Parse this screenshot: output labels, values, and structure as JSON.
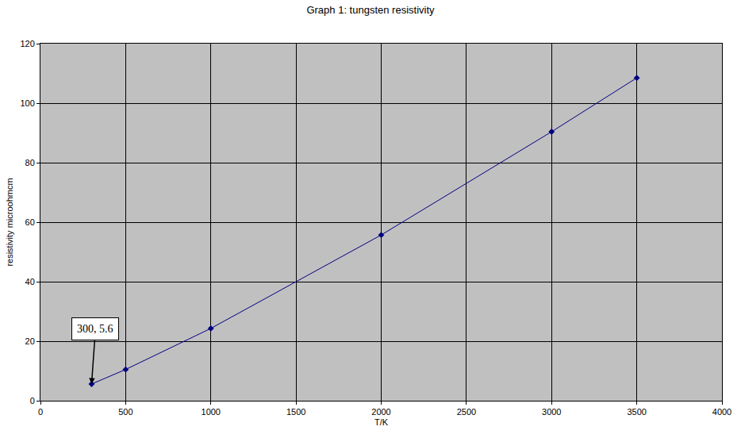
{
  "chart_data": {
    "type": "line",
    "title": "Graph 1: tungsten resistivity",
    "x_label": "T/K",
    "y_label": "resistivity microohmcm",
    "x": [
      300,
      500,
      1000,
      2000,
      3000,
      3500
    ],
    "series": [
      {
        "name": "resistivity",
        "color": "#000080",
        "marker": "diamond",
        "line_style": "solid",
        "values": [
          5.6,
          10.5,
          24.3,
          55.7,
          90.4,
          108.5
        ]
      }
    ],
    "xlim": [
      0,
      4000
    ],
    "xticks": [
      0,
      500,
      1000,
      1500,
      2000,
      2500,
      3000,
      3500,
      4000
    ],
    "ylim": [
      0,
      120
    ],
    "yticks": [
      0,
      20,
      40,
      60,
      80,
      100,
      120
    ],
    "grid": true,
    "annotations": [
      {
        "text": "300, 5.6",
        "x": 300,
        "y": 5.6
      }
    ]
  }
}
